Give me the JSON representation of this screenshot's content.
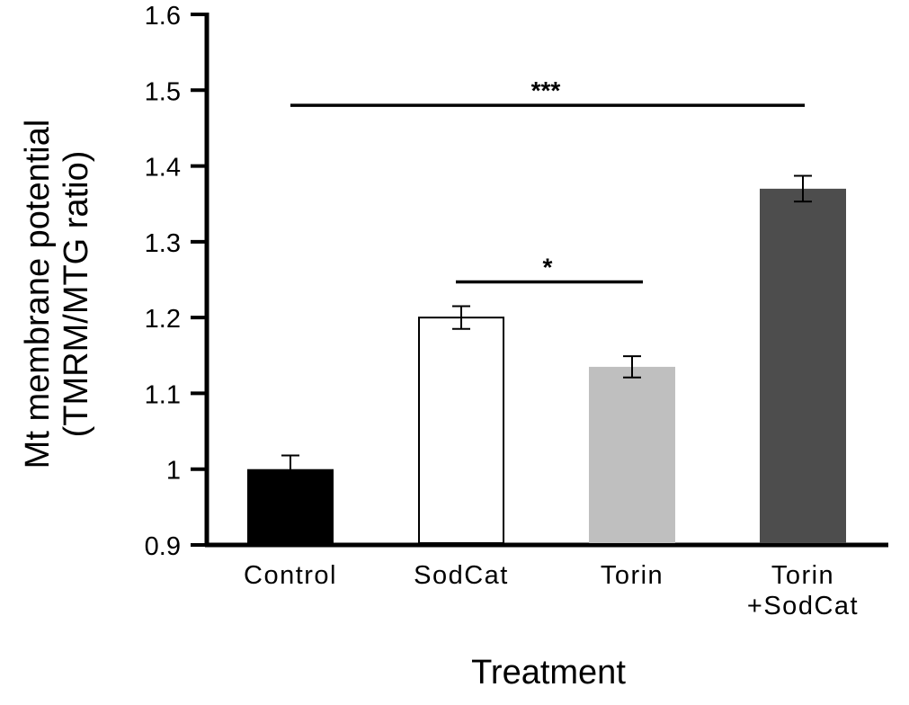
{
  "chart_data": {
    "type": "bar",
    "title": "",
    "xlabel": "Treatment",
    "ylabel_lines": [
      "Mt membrane potential",
      "(TMRM/MTG ratio)"
    ],
    "ylim": [
      0.9,
      1.6
    ],
    "yticks": [
      "0.9",
      "1",
      "1.1",
      "1.2",
      "1.3",
      "1.4",
      "1.5",
      "1.6"
    ],
    "categories": [
      [
        "Control"
      ],
      [
        "SodCat"
      ],
      [
        "Torin"
      ],
      [
        "Torin",
        "+SodCat"
      ]
    ],
    "values": [
      1.0,
      1.2,
      1.135,
      1.37
    ],
    "errors": [
      0.018,
      0.015,
      0.014,
      0.017
    ],
    "colors": [
      "#000000",
      "#ffffff",
      "#bfbfbf",
      "#4d4d4d"
    ],
    "grid": false,
    "legend": "none",
    "significance": [
      {
        "label": "***",
        "from": 0,
        "to": 3,
        "y": 1.48
      },
      {
        "label": "*",
        "from": 1,
        "to": 2,
        "y": 1.247
      }
    ]
  }
}
